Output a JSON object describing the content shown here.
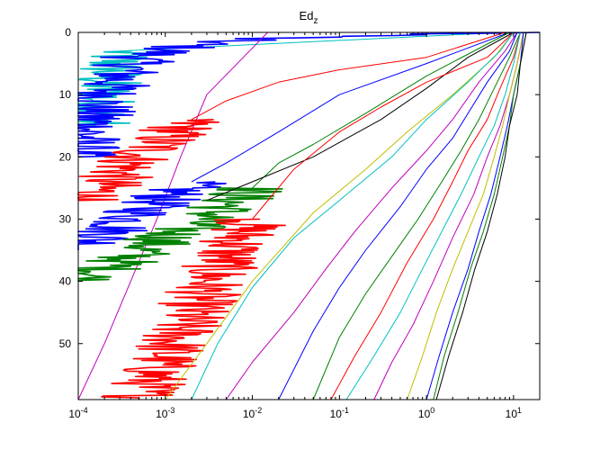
{
  "chart_data": {
    "type": "line",
    "title": "Ed",
    "title_subscript": "z",
    "xlabel": "",
    "ylabel": "",
    "x_scale": "log",
    "x_lim": [
      0.0001,
      20
    ],
    "y_lim": [
      0,
      59
    ],
    "y_reversed": true,
    "grid": false,
    "legend": "none",
    "x_ticks": [
      {
        "value": 0.0001,
        "base": "10",
        "exp": "-4"
      },
      {
        "value": 0.001,
        "base": "10",
        "exp": "-3"
      },
      {
        "value": 0.01,
        "base": "10",
        "exp": "-2"
      },
      {
        "value": 0.1,
        "base": "10",
        "exp": "-1"
      },
      {
        "value": 1,
        "base": "10",
        "exp": "0"
      },
      {
        "value": 10,
        "base": "10",
        "exp": "1"
      }
    ],
    "y_ticks": [
      "0",
      "10",
      "20",
      "30",
      "40",
      "50"
    ],
    "series": [
      {
        "color": "#00bfbf",
        "noisy": false,
        "points": [
          [
            8,
            0
          ],
          [
            0.0003,
            3
          ]
        ]
      },
      {
        "color": "#00bfbf",
        "noisy": true,
        "points": [
          [
            0.0003,
            3
          ],
          [
            0.0002,
            8
          ],
          [
            0.00015,
            15
          ]
        ]
      },
      {
        "color": "#0000ff",
        "noisy": true,
        "points": [
          [
            10,
            0
          ],
          [
            0.01,
            1
          ],
          [
            0.002,
            2
          ],
          [
            0.0005,
            4
          ],
          [
            0.0002,
            10
          ],
          [
            0.0001,
            20
          ]
        ]
      },
      {
        "color": "#bf00bf",
        "noisy": false,
        "points": [
          [
            0.015,
            0
          ],
          [
            0.003,
            10
          ],
          [
            0.0015,
            20
          ],
          [
            0.0008,
            30
          ],
          [
            0.0004,
            40
          ],
          [
            0.0002,
            50
          ],
          [
            0.0001,
            59
          ]
        ]
      },
      {
        "color": "#ff0000",
        "noisy": false,
        "points": [
          [
            8,
            0
          ],
          [
            1,
            4
          ],
          [
            0.1,
            6
          ],
          [
            0.02,
            8
          ],
          [
            0.005,
            11
          ],
          [
            0.002,
            14
          ]
        ]
      },
      {
        "color": "#ff0000",
        "noisy": true,
        "points": [
          [
            0.002,
            14
          ],
          [
            0.0005,
            20
          ],
          [
            0.00015,
            26
          ],
          [
            0.0001,
            27
          ]
        ]
      },
      {
        "color": "#0000ff",
        "noisy": false,
        "points": [
          [
            9,
            0
          ],
          [
            1,
            5
          ],
          [
            0.1,
            10
          ],
          [
            0.02,
            16
          ],
          [
            0.005,
            21
          ],
          [
            0.002,
            24
          ]
        ]
      },
      {
        "color": "#0000ff",
        "noisy": true,
        "points": [
          [
            0.002,
            24
          ],
          [
            0.0005,
            29
          ],
          [
            0.0002,
            33
          ],
          [
            0.0001,
            35
          ]
        ]
      },
      {
        "color": "#008000",
        "noisy": false,
        "points": [
          [
            9,
            0
          ],
          [
            1,
            7
          ],
          [
            0.2,
            13
          ],
          [
            0.05,
            18
          ],
          [
            0.02,
            21
          ],
          [
            0.01,
            25
          ]
        ]
      },
      {
        "color": "#008000",
        "noisy": true,
        "points": [
          [
            0.01,
            25
          ],
          [
            0.003,
            30
          ],
          [
            0.001,
            33
          ],
          [
            0.0003,
            37
          ],
          [
            0.0001,
            40
          ]
        ]
      },
      {
        "color": "#000000",
        "noisy": false,
        "points": [
          [
            10,
            0
          ],
          [
            3,
            4
          ],
          [
            1,
            9
          ],
          [
            0.3,
            14
          ],
          [
            0.05,
            20
          ],
          [
            0.01,
            24
          ],
          [
            0.003,
            27
          ]
        ]
      },
      {
        "color": "#ff0000",
        "noisy": false,
        "points": [
          [
            10,
            0
          ],
          [
            5,
            4
          ],
          [
            1,
            8
          ],
          [
            0.3,
            12
          ],
          [
            0.1,
            16
          ],
          [
            0.03,
            22
          ],
          [
            0.01,
            30
          ]
        ]
      },
      {
        "color": "#ff0000",
        "noisy": true,
        "points": [
          [
            0.01,
            30
          ],
          [
            0.004,
            38
          ],
          [
            0.002,
            45
          ],
          [
            0.001,
            52
          ],
          [
            0.0005,
            59
          ]
        ]
      },
      {
        "color": "#bfbf00",
        "noisy": false,
        "points": [
          [
            10,
            0
          ],
          [
            6,
            4
          ],
          [
            2,
            10
          ],
          [
            0.6,
            16
          ],
          [
            0.2,
            22
          ],
          [
            0.05,
            29
          ],
          [
            0.01,
            40
          ],
          [
            0.003,
            50
          ],
          [
            0.001,
            59
          ]
        ]
      },
      {
        "color": "#00bfbf",
        "noisy": false,
        "points": [
          [
            10,
            0
          ],
          [
            7,
            3
          ],
          [
            3,
            8
          ],
          [
            1,
            14
          ],
          [
            0.4,
            20
          ],
          [
            0.1,
            27
          ],
          [
            0.03,
            33
          ],
          [
            0.01,
            41
          ],
          [
            0.004,
            50
          ],
          [
            0.002,
            59
          ]
        ]
      },
      {
        "color": "#bf00bf",
        "noisy": false,
        "points": [
          [
            11,
            0
          ],
          [
            8,
            3
          ],
          [
            4,
            8
          ],
          [
            2,
            14
          ],
          [
            1,
            19
          ],
          [
            0.4,
            25
          ],
          [
            0.15,
            32
          ],
          [
            0.07,
            38
          ],
          [
            0.03,
            45
          ],
          [
            0.01,
            53
          ],
          [
            0.005,
            59
          ]
        ]
      },
      {
        "color": "#0000ff",
        "noisy": false,
        "points": [
          [
            11,
            0
          ],
          [
            9,
            3
          ],
          [
            5,
            8
          ],
          [
            3,
            13
          ],
          [
            2,
            17
          ],
          [
            1,
            22
          ],
          [
            0.5,
            28
          ],
          [
            0.2,
            35
          ],
          [
            0.1,
            41
          ],
          [
            0.05,
            48
          ],
          [
            0.02,
            59
          ]
        ]
      },
      {
        "color": "#008000",
        "noisy": false,
        "points": [
          [
            12,
            0
          ],
          [
            9,
            4
          ],
          [
            6,
            9
          ],
          [
            4,
            14
          ],
          [
            2.5,
            19
          ],
          [
            1.5,
            24
          ],
          [
            0.8,
            30
          ],
          [
            0.4,
            36
          ],
          [
            0.2,
            42
          ],
          [
            0.1,
            49
          ],
          [
            0.05,
            59
          ]
        ]
      },
      {
        "color": "#ff0000",
        "noisy": false,
        "points": [
          [
            12,
            0
          ],
          [
            10,
            4
          ],
          [
            7,
            9
          ],
          [
            5,
            14
          ],
          [
            3,
            19
          ],
          [
            2,
            24
          ],
          [
            1.2,
            30
          ],
          [
            0.6,
            37
          ],
          [
            0.3,
            45
          ],
          [
            0.15,
            52
          ],
          [
            0.08,
            59
          ]
        ]
      },
      {
        "color": "#00bfbf",
        "noisy": false,
        "points": [
          [
            12,
            0
          ],
          [
            10,
            5
          ],
          [
            8,
            10
          ],
          [
            6,
            15
          ],
          [
            4,
            20
          ],
          [
            2.5,
            26
          ],
          [
            1.5,
            32
          ],
          [
            0.9,
            38
          ],
          [
            0.5,
            45
          ],
          [
            0.25,
            52
          ],
          [
            0.12,
            59
          ]
        ]
      },
      {
        "color": "#bf00bf",
        "noisy": false,
        "points": [
          [
            13,
            0
          ],
          [
            11,
            5
          ],
          [
            9,
            10
          ],
          [
            7,
            15
          ],
          [
            5,
            20
          ],
          [
            3.5,
            26
          ],
          [
            2,
            33
          ],
          [
            1.2,
            40
          ],
          [
            0.7,
            47
          ],
          [
            0.4,
            53
          ],
          [
            0.25,
            59
          ]
        ]
      },
      {
        "color": "#bfbf00",
        "noisy": false,
        "points": [
          [
            13,
            0
          ],
          [
            11,
            5
          ],
          [
            9,
            10
          ],
          [
            7.5,
            15
          ],
          [
            6,
            20
          ],
          [
            4.5,
            26
          ],
          [
            3,
            32
          ],
          [
            2,
            38
          ],
          [
            1.3,
            45
          ],
          [
            0.9,
            52
          ],
          [
            0.6,
            59
          ]
        ]
      },
      {
        "color": "#0000ff",
        "noisy": false,
        "points": [
          [
            13,
            0
          ],
          [
            12,
            5
          ],
          [
            10,
            10
          ],
          [
            8.5,
            15
          ],
          [
            7,
            20
          ],
          [
            5.5,
            26
          ],
          [
            4,
            32
          ],
          [
            3,
            38
          ],
          [
            2,
            45
          ],
          [
            1.4,
            52
          ],
          [
            1,
            59
          ]
        ]
      },
      {
        "color": "#008000",
        "noisy": false,
        "points": [
          [
            14,
            0
          ],
          [
            12,
            5
          ],
          [
            10,
            10
          ],
          [
            9,
            15
          ],
          [
            7.5,
            20
          ],
          [
            6,
            26
          ],
          [
            4.5,
            32
          ],
          [
            3.2,
            38
          ],
          [
            2.3,
            45
          ],
          [
            1.6,
            52
          ],
          [
            1.2,
            59
          ]
        ]
      },
      {
        "color": "#000000",
        "noisy": false,
        "points": [
          [
            14,
            0
          ],
          [
            12,
            5
          ],
          [
            11,
            10
          ],
          [
            9,
            15
          ],
          [
            8,
            20
          ],
          [
            6.5,
            26
          ],
          [
            5,
            32
          ],
          [
            3.6,
            38
          ],
          [
            2.6,
            45
          ],
          [
            1.8,
            52
          ],
          [
            1.3,
            59
          ]
        ]
      }
    ]
  }
}
